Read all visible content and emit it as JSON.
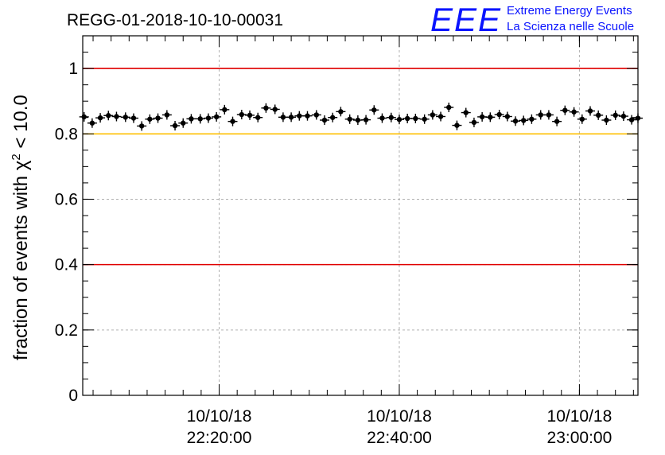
{
  "header": {
    "run_id": "REGG-01-2018-10-10-00031",
    "logo_mark": "EEE",
    "logo_line1": "Extreme Energy Events",
    "logo_line2": "La Scienza nelle Scuole"
  },
  "colors": {
    "reference_red": "#e00000",
    "reference_yellow": "#ffc000",
    "markers": "#000000",
    "logo_blue": "#0a14ff"
  },
  "chart_data": {
    "type": "scatter",
    "title": "REGG-01-2018-10-10-00031",
    "ylabel_prefix": "fraction of events with ",
    "ylabel_symbol": "χ",
    "ylabel_sup": "2",
    "ylabel_suffix": " < 10.0",
    "xlabel": "",
    "ylim": [
      0,
      1.1
    ],
    "xlim_minutes_after_2200": [
      4.85,
      66.5
    ],
    "grid": true,
    "y_ticks": [
      "0",
      "0.2",
      "0.4",
      "0.6",
      "0.8",
      "1"
    ],
    "y_tick_values": [
      0,
      0.2,
      0.4,
      0.6,
      0.8,
      1.0
    ],
    "x_ticks": [
      {
        "date": "10/10/18",
        "time": "22:20:00",
        "minutes_after_2200": 20
      },
      {
        "date": "10/10/18",
        "time": "22:40:00",
        "minutes_after_2200": 40
      },
      {
        "date": "10/10/18",
        "time": "23:00:00",
        "minutes_after_2200": 60
      }
    ],
    "reference_lines": [
      {
        "y": 1.0,
        "color": "#e00000"
      },
      {
        "y": 0.8,
        "color": "#ffc000"
      },
      {
        "y": 0.4,
        "color": "#e00000"
      }
    ],
    "series": [
      {
        "marker": "cross",
        "x_minutes_after_2200": [
          5.0,
          5.9,
          6.8,
          7.7,
          8.6,
          9.6,
          10.5,
          11.4,
          12.3,
          13.2,
          14.2,
          15.1,
          16.0,
          16.9,
          17.9,
          18.8,
          19.7,
          20.6,
          21.5,
          22.5,
          23.4,
          24.3,
          25.2,
          26.2,
          27.1,
          28.0,
          28.9,
          29.8,
          30.8,
          31.7,
          32.6,
          33.5,
          34.5,
          35.4,
          36.3,
          37.2,
          38.1,
          39.1,
          40.0,
          40.9,
          41.8,
          42.8,
          43.7,
          44.6,
          45.5,
          46.4,
          47.4,
          48.3,
          49.2,
          50.1,
          51.1,
          52.0,
          52.9,
          53.8,
          54.7,
          55.7,
          56.6,
          57.5,
          58.4,
          59.4,
          60.3,
          61.2,
          62.1,
          63.0,
          64.0,
          64.9,
          65.8,
          66.5
        ],
        "y": [
          0.852,
          0.833,
          0.849,
          0.856,
          0.853,
          0.851,
          0.848,
          0.824,
          0.845,
          0.848,
          0.858,
          0.825,
          0.833,
          0.846,
          0.846,
          0.848,
          0.852,
          0.874,
          0.838,
          0.859,
          0.857,
          0.85,
          0.879,
          0.875,
          0.851,
          0.851,
          0.855,
          0.855,
          0.858,
          0.842,
          0.85,
          0.868,
          0.845,
          0.842,
          0.843,
          0.873,
          0.848,
          0.85,
          0.844,
          0.847,
          0.847,
          0.845,
          0.858,
          0.853,
          0.881,
          0.826,
          0.865,
          0.835,
          0.852,
          0.851,
          0.859,
          0.853,
          0.839,
          0.841,
          0.845,
          0.858,
          0.858,
          0.838,
          0.872,
          0.867,
          0.845,
          0.87,
          0.857,
          0.842,
          0.857,
          0.854,
          0.843,
          0.848
        ]
      }
    ]
  }
}
